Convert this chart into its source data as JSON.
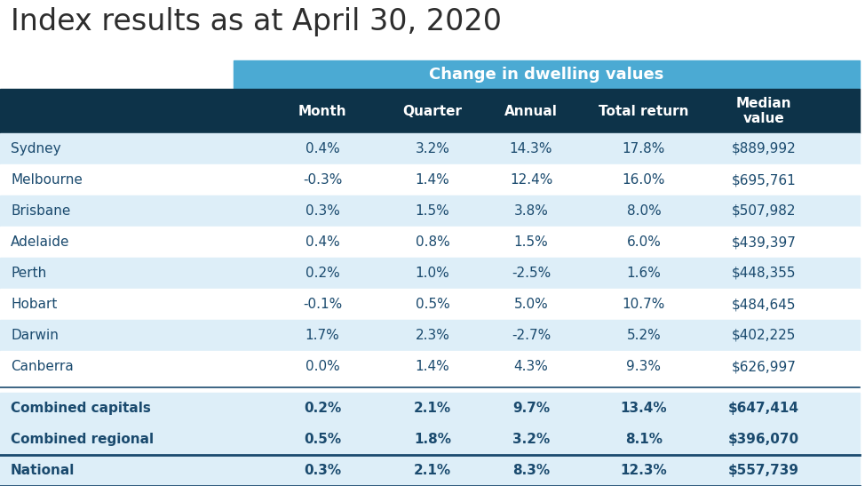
{
  "title": "Index results as at April 30, 2020",
  "header_banner": "Change in dwelling values",
  "col_headers": [
    "Month",
    "Quarter",
    "Annual",
    "Total return",
    "Median\nvalue"
  ],
  "rows": [
    {
      "city": "Sydney",
      "month": "0.4%",
      "quarter": "3.2%",
      "annual": "14.3%",
      "total": "17.8%",
      "median": "$889,992",
      "bold": false
    },
    {
      "city": "Melbourne",
      "month": "-0.3%",
      "quarter": "1.4%",
      "annual": "12.4%",
      "total": "16.0%",
      "median": "$695,761",
      "bold": false
    },
    {
      "city": "Brisbane",
      "month": "0.3%",
      "quarter": "1.5%",
      "annual": "3.8%",
      "total": "8.0%",
      "median": "$507,982",
      "bold": false
    },
    {
      "city": "Adelaide",
      "month": "0.4%",
      "quarter": "0.8%",
      "annual": "1.5%",
      "total": "6.0%",
      "median": "$439,397",
      "bold": false
    },
    {
      "city": "Perth",
      "month": "0.2%",
      "quarter": "1.0%",
      "annual": "-2.5%",
      "total": "1.6%",
      "median": "$448,355",
      "bold": false
    },
    {
      "city": "Hobart",
      "month": "-0.1%",
      "quarter": "0.5%",
      "annual": "5.0%",
      "total": "10.7%",
      "median": "$484,645",
      "bold": false
    },
    {
      "city": "Darwin",
      "month": "1.7%",
      "quarter": "2.3%",
      "annual": "-2.7%",
      "total": "5.2%",
      "median": "$402,225",
      "bold": false
    },
    {
      "city": "Canberra",
      "month": "0.0%",
      "quarter": "1.4%",
      "annual": "4.3%",
      "total": "9.3%",
      "median": "$626,997",
      "bold": false
    },
    {
      "city": "Combined capitals",
      "month": "0.2%",
      "quarter": "2.1%",
      "annual": "9.7%",
      "total": "13.4%",
      "median": "$647,414",
      "bold": true
    },
    {
      "city": "Combined regional",
      "month": "0.5%",
      "quarter": "1.8%",
      "annual": "3.2%",
      "total": "8.1%",
      "median": "$396,070",
      "bold": true
    },
    {
      "city": "National",
      "month": "0.3%",
      "quarter": "2.1%",
      "annual": "8.3%",
      "total": "12.3%",
      "median": "$557,739",
      "bold": true
    }
  ],
  "color_banner": "#4baad3",
  "color_subheader_bg": "#0d3349",
  "color_subheader_text": "#ffffff",
  "color_row_light": "#ddeef8",
  "color_row_white": "#ffffff",
  "color_city_text": "#1a4a6e",
  "color_data_text": "#1a4a6e",
  "color_title_text": "#2d2d2d",
  "color_line": "#1a4a6e",
  "title_fontsize": 24,
  "header_fontsize": 11,
  "cell_fontsize": 11,
  "fig_w": 9.74,
  "fig_h": 5.47,
  "dpi": 100
}
